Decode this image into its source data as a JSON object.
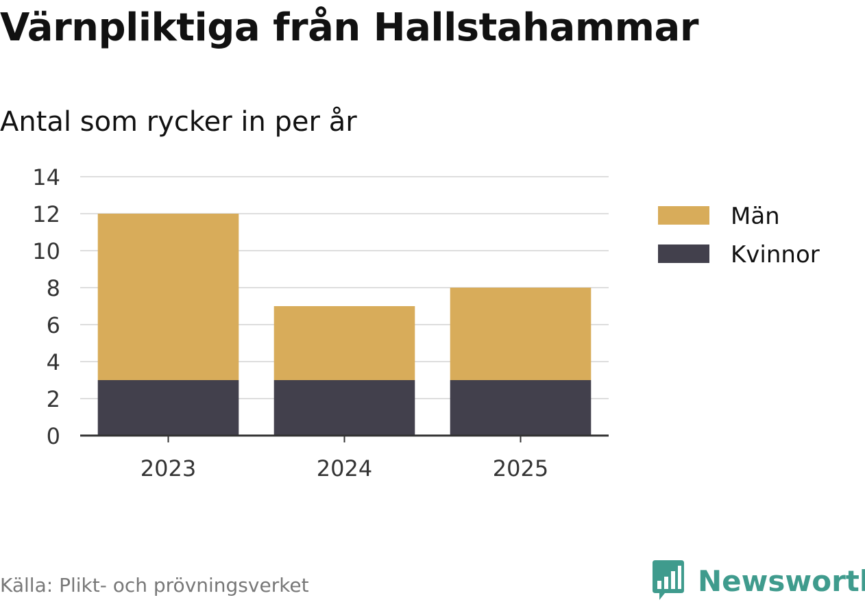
{
  "title": "Värnpliktiga från Hallstahammar",
  "subtitle": "Antal som rycker in per år",
  "source": "Källa: Plikt- och prövningsverket",
  "brand": {
    "name": "Newsworthy",
    "color": "#3f9b8d",
    "icon": "bar-chart-speech-bubble-icon"
  },
  "chart_data": {
    "type": "bar",
    "stacked": true,
    "categories": [
      "2023",
      "2024",
      "2025"
    ],
    "series": [
      {
        "name": "Kvinnor",
        "values": [
          3,
          3,
          3
        ],
        "color": "#42404c"
      },
      {
        "name": "Män",
        "values": [
          9,
          4,
          5
        ],
        "color": "#d8ac5a"
      }
    ],
    "legend_order": [
      "Män",
      "Kvinnor"
    ],
    "ylim": [
      0,
      14
    ],
    "yticks": [
      0,
      2,
      4,
      6,
      8,
      10,
      12,
      14
    ],
    "grid": true,
    "legend_position": "right",
    "xlabel": "",
    "ylabel": ""
  }
}
